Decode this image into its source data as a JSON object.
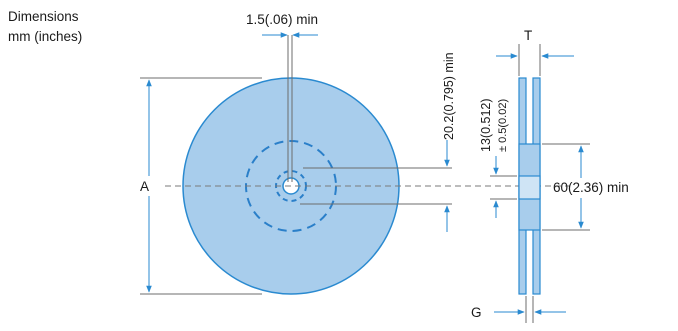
{
  "header": {
    "title_line1": "Dimensions",
    "title_line2": "mm (inches)"
  },
  "labels": {
    "hub_slot_width": "1.5(.06) min",
    "arbor_hole_depth": "20.2(0.795) min",
    "arbor_diameter": "13(0.512)",
    "arbor_tolerance": "± 0.5(0.02)",
    "reel_diameter": "A",
    "hub_diameter": "60(2.36) min",
    "flange_thickness": "T",
    "inner_width": "G"
  },
  "colors": {
    "reel_fill": "#a8cdec",
    "reel_edge": "#2a8ad0",
    "dashes": "#2a7fc9",
    "arrows": "#2a8ad0",
    "lines": "#6d6d6d"
  }
}
